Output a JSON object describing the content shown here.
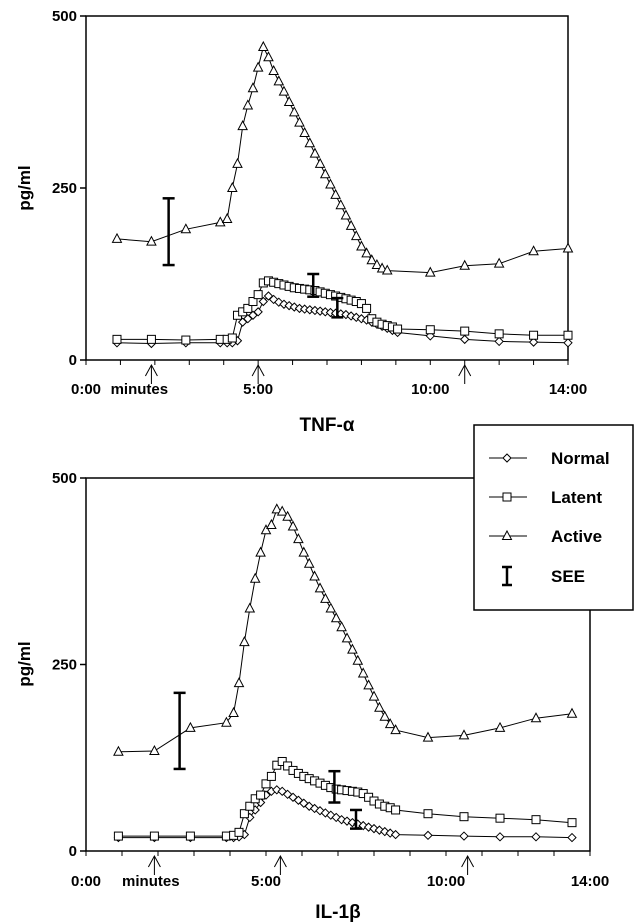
{
  "chart_data": [
    {
      "type": "line",
      "title": "TNF-α",
      "ylabel": "pg/ml",
      "ylim": [
        0,
        500
      ],
      "xlim": [
        0,
        14
      ],
      "yticks": [
        0,
        250,
        500
      ],
      "xtick_labels": [
        {
          "x": 0,
          "label": "0:00"
        },
        {
          "x": 1.55,
          "label": "minutes"
        },
        {
          "x": 5,
          "label": "5:00"
        },
        {
          "x": 10,
          "label": "10:00"
        },
        {
          "x": 14,
          "label": "14:00"
        }
      ],
      "arrows": [
        1.9,
        5,
        11
      ],
      "series": [
        {
          "name": "Normal",
          "marker": "diamond",
          "points": [
            [
              0.9,
              25
            ],
            [
              1.9,
              24
            ],
            [
              2.9,
              25
            ],
            [
              3.9,
              25
            ],
            [
              4.1,
              25
            ],
            [
              4.25,
              25
            ],
            [
              4.4,
              28
            ],
            [
              4.55,
              55
            ],
            [
              4.7,
              60
            ],
            [
              4.85,
              65
            ],
            [
              5.0,
              70
            ],
            [
              5.15,
              85
            ],
            [
              5.3,
              93
            ],
            [
              5.45,
              88
            ],
            [
              5.6,
              84
            ],
            [
              5.75,
              81
            ],
            [
              5.9,
              79
            ],
            [
              6.05,
              77
            ],
            [
              6.2,
              75
            ],
            [
              6.35,
              74
            ],
            [
              6.5,
              73
            ],
            [
              6.65,
              72
            ],
            [
              6.8,
              71
            ],
            [
              6.95,
              70
            ],
            [
              7.1,
              69
            ],
            [
              7.25,
              68
            ],
            [
              7.4,
              67
            ],
            [
              7.55,
              66
            ],
            [
              7.7,
              64
            ],
            [
              7.85,
              62
            ],
            [
              8.0,
              60
            ],
            [
              8.15,
              58
            ],
            [
              8.3,
              55
            ],
            [
              8.45,
              52
            ],
            [
              8.6,
              49
            ],
            [
              8.75,
              46
            ],
            [
              8.9,
              43
            ],
            [
              9.05,
              40
            ],
            [
              10.0,
              35
            ],
            [
              11.0,
              30
            ],
            [
              12.0,
              27
            ],
            [
              13.0,
              26
            ],
            [
              14.0,
              25
            ]
          ]
        },
        {
          "name": "Latent",
          "marker": "square",
          "points": [
            [
              0.9,
              30
            ],
            [
              1.9,
              30
            ],
            [
              2.9,
              29
            ],
            [
              3.9,
              30
            ],
            [
              4.1,
              30
            ],
            [
              4.25,
              32
            ],
            [
              4.4,
              65
            ],
            [
              4.55,
              70
            ],
            [
              4.7,
              75
            ],
            [
              4.85,
              85
            ],
            [
              5.0,
              95
            ],
            [
              5.15,
              112
            ],
            [
              5.3,
              115
            ],
            [
              5.45,
              113
            ],
            [
              5.6,
              111
            ],
            [
              5.75,
              109
            ],
            [
              5.9,
              107
            ],
            [
              6.05,
              105
            ],
            [
              6.2,
              104
            ],
            [
              6.35,
              103
            ],
            [
              6.5,
              102
            ],
            [
              6.65,
              101
            ],
            [
              6.8,
              99
            ],
            [
              6.95,
              97
            ],
            [
              7.1,
              95
            ],
            [
              7.25,
              93
            ],
            [
              7.4,
              91
            ],
            [
              7.55,
              89
            ],
            [
              7.7,
              87
            ],
            [
              7.85,
              85
            ],
            [
              8.0,
              82
            ],
            [
              8.15,
              75
            ],
            [
              8.3,
              60
            ],
            [
              8.45,
              55
            ],
            [
              8.6,
              52
            ],
            [
              8.75,
              50
            ],
            [
              8.9,
              48
            ],
            [
              9.05,
              45
            ],
            [
              10.0,
              44
            ],
            [
              11.0,
              42
            ],
            [
              12.0,
              38
            ],
            [
              13.0,
              36
            ],
            [
              14.0,
              36
            ]
          ]
        },
        {
          "name": "Active",
          "marker": "triangle",
          "points": [
            [
              0.9,
              176
            ],
            [
              1.9,
              172
            ],
            [
              2.9,
              190
            ],
            [
              3.9,
              200
            ],
            [
              4.1,
              205
            ],
            [
              4.25,
              250
            ],
            [
              4.4,
              285
            ],
            [
              4.55,
              340
            ],
            [
              4.7,
              370
            ],
            [
              4.85,
              395
            ],
            [
              5.0,
              425
            ],
            [
              5.15,
              455
            ],
            [
              5.3,
              440
            ],
            [
              5.45,
              420
            ],
            [
              5.6,
              405
            ],
            [
              5.75,
              390
            ],
            [
              5.9,
              375
            ],
            [
              6.05,
              360
            ],
            [
              6.2,
              345
            ],
            [
              6.35,
              330
            ],
            [
              6.5,
              315
            ],
            [
              6.65,
              300
            ],
            [
              6.8,
              285
            ],
            [
              6.95,
              270
            ],
            [
              7.1,
              255
            ],
            [
              7.25,
              240
            ],
            [
              7.4,
              225
            ],
            [
              7.55,
              210
            ],
            [
              7.7,
              195
            ],
            [
              7.85,
              180
            ],
            [
              8.0,
              165
            ],
            [
              8.15,
              155
            ],
            [
              8.3,
              145
            ],
            [
              8.45,
              138
            ],
            [
              8.6,
              133
            ],
            [
              8.75,
              130
            ],
            [
              10.0,
              127
            ],
            [
              11.0,
              137
            ],
            [
              12.0,
              140
            ],
            [
              13.0,
              158
            ],
            [
              14.0,
              162
            ]
          ]
        }
      ],
      "error_bars": [
        {
          "x": 2.4,
          "low": 138,
          "high": 235
        },
        {
          "x": 6.6,
          "low": 92,
          "high": 125
        },
        {
          "x": 7.3,
          "low": 62,
          "high": 90
        }
      ]
    },
    {
      "type": "line",
      "title": "IL-1β",
      "ylabel": "pg/ml",
      "ylim": [
        0,
        500
      ],
      "xlim": [
        0,
        14
      ],
      "yticks": [
        0,
        250,
        500
      ],
      "xtick_labels": [
        {
          "x": 0,
          "label": "0:00"
        },
        {
          "x": 1.8,
          "label": "minutes"
        },
        {
          "x": 5,
          "label": "5:00"
        },
        {
          "x": 10,
          "label": "10:00"
        },
        {
          "x": 14,
          "label": "14:00"
        }
      ],
      "arrows": [
        1.9,
        5.4,
        10.6
      ],
      "series": [
        {
          "name": "Normal",
          "marker": "diamond",
          "points": [
            [
              0.9,
              18
            ],
            [
              1.9,
              18
            ],
            [
              2.9,
              18
            ],
            [
              3.9,
              18
            ],
            [
              4.1,
              18
            ],
            [
              4.25,
              19
            ],
            [
              4.4,
              22
            ],
            [
              4.55,
              45
            ],
            [
              4.7,
              55
            ],
            [
              4.85,
              65
            ],
            [
              5.0,
              75
            ],
            [
              5.15,
              80
            ],
            [
              5.3,
              82
            ],
            [
              5.45,
              80
            ],
            [
              5.6,
              76
            ],
            [
              5.75,
              72
            ],
            [
              5.9,
              68
            ],
            [
              6.05,
              64
            ],
            [
              6.2,
              60
            ],
            [
              6.35,
              57
            ],
            [
              6.5,
              54
            ],
            [
              6.65,
              51
            ],
            [
              6.8,
              48
            ],
            [
              6.95,
              45
            ],
            [
              7.1,
              42
            ],
            [
              7.25,
              40
            ],
            [
              7.4,
              38
            ],
            [
              7.55,
              36
            ],
            [
              7.7,
              34
            ],
            [
              7.85,
              32
            ],
            [
              8.0,
              30
            ],
            [
              8.15,
              28
            ],
            [
              8.3,
              26
            ],
            [
              8.45,
              24
            ],
            [
              8.6,
              22
            ],
            [
              9.5,
              21
            ],
            [
              10.5,
              20
            ],
            [
              11.5,
              19
            ],
            [
              12.5,
              19
            ],
            [
              13.5,
              18
            ]
          ]
        },
        {
          "name": "Latent",
          "marker": "square",
          "points": [
            [
              0.9,
              20
            ],
            [
              1.9,
              20
            ],
            [
              2.9,
              20
            ],
            [
              3.9,
              20
            ],
            [
              4.1,
              21
            ],
            [
              4.25,
              25
            ],
            [
              4.4,
              50
            ],
            [
              4.55,
              60
            ],
            [
              4.7,
              70
            ],
            [
              4.85,
              75
            ],
            [
              5.0,
              90
            ],
            [
              5.15,
              100
            ],
            [
              5.3,
              115
            ],
            [
              5.45,
              120
            ],
            [
              5.6,
              114
            ],
            [
              5.75,
              108
            ],
            [
              5.9,
              104
            ],
            [
              6.05,
              100
            ],
            [
              6.2,
              97
            ],
            [
              6.35,
              94
            ],
            [
              6.5,
              91
            ],
            [
              6.65,
              88
            ],
            [
              6.8,
              85
            ],
            [
              6.95,
              83
            ],
            [
              7.1,
              82
            ],
            [
              7.25,
              81
            ],
            [
              7.4,
              80
            ],
            [
              7.55,
              79
            ],
            [
              7.7,
              77
            ],
            [
              7.85,
              72
            ],
            [
              8.0,
              67
            ],
            [
              8.15,
              63
            ],
            [
              8.3,
              60
            ],
            [
              8.45,
              58
            ],
            [
              8.6,
              55
            ],
            [
              9.5,
              50
            ],
            [
              10.5,
              46
            ],
            [
              11.5,
              44
            ],
            [
              12.5,
              42
            ],
            [
              13.5,
              38
            ]
          ]
        },
        {
          "name": "Active",
          "marker": "triangle",
          "points": [
            [
              0.9,
              133
            ],
            [
              1.9,
              134
            ],
            [
              2.9,
              165
            ],
            [
              3.9,
              172
            ],
            [
              4.1,
              185
            ],
            [
              4.25,
              225
            ],
            [
              4.4,
              280
            ],
            [
              4.55,
              325
            ],
            [
              4.7,
              365
            ],
            [
              4.85,
              400
            ],
            [
              5.0,
              430
            ],
            [
              5.15,
              437
            ],
            [
              5.3,
              458
            ],
            [
              5.45,
              455
            ],
            [
              5.6,
              448
            ],
            [
              5.75,
              435
            ],
            [
              5.9,
              418
            ],
            [
              6.05,
              400
            ],
            [
              6.2,
              385
            ],
            [
              6.35,
              368
            ],
            [
              6.5,
              352
            ],
            [
              6.65,
              338
            ],
            [
              6.8,
              325
            ],
            [
              6.95,
              312
            ],
            [
              7.1,
              300
            ],
            [
              7.25,
              285
            ],
            [
              7.4,
              270
            ],
            [
              7.55,
              255
            ],
            [
              7.7,
              238
            ],
            [
              7.85,
              222
            ],
            [
              8.0,
              207
            ],
            [
              8.15,
              192
            ],
            [
              8.3,
              180
            ],
            [
              8.45,
              170
            ],
            [
              8.6,
              162
            ],
            [
              9.5,
              152
            ],
            [
              10.5,
              155
            ],
            [
              11.5,
              165
            ],
            [
              12.5,
              178
            ],
            [
              13.5,
              184
            ]
          ]
        }
      ],
      "error_bars": [
        {
          "x": 2.6,
          "low": 110,
          "high": 212
        },
        {
          "x": 6.9,
          "low": 65,
          "high": 107
        },
        {
          "x": 7.5,
          "low": 30,
          "high": 55
        }
      ]
    }
  ],
  "legend": {
    "entries": [
      {
        "label": "Normal",
        "marker": "diamond"
      },
      {
        "label": "Latent",
        "marker": "square"
      },
      {
        "label": "Active",
        "marker": "triangle"
      },
      {
        "label": "SEE",
        "marker": "errorbar"
      }
    ]
  }
}
